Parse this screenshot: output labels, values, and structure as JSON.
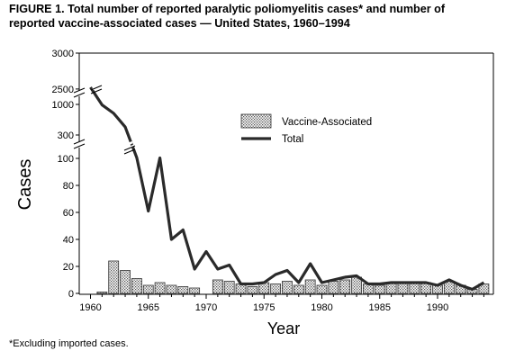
{
  "title_line1": "FIGURE 1. Total number of reported paralytic poliomyelitis cases* and number of",
  "title_line2": "reported vaccine-associated cases — United States, 1960–1994",
  "footnote": "*Excluding imported cases.",
  "chart_data": {
    "type": "bar+line",
    "xlabel": "Year",
    "ylabel": "Cases",
    "x_ticks": [
      "1960",
      "1965",
      "1970",
      "1975",
      "1980",
      "1985",
      "1990"
    ],
    "y_ticks_lower": [
      "0",
      "20",
      "40",
      "60",
      "80",
      "100"
    ],
    "y_ticks_upper": [
      "300",
      "1000",
      "2500",
      "3000"
    ],
    "axis_breaks": true,
    "legend_position": "center-right",
    "colors": {
      "bars": "#cfcfcf",
      "line": "#2a2a2a"
    },
    "years": [
      1960,
      1961,
      1962,
      1963,
      1964,
      1965,
      1966,
      1967,
      1968,
      1969,
      1970,
      1971,
      1972,
      1973,
      1974,
      1975,
      1976,
      1977,
      1978,
      1979,
      1980,
      1981,
      1982,
      1983,
      1984,
      1985,
      1986,
      1987,
      1988,
      1989,
      1990,
      1991,
      1992,
      1993,
      1994
    ],
    "series": [
      {
        "name": "Vaccine-Associated",
        "kind": "bar",
        "values": [
          0,
          1,
          24,
          17,
          11,
          6,
          8,
          6,
          5,
          4,
          0,
          10,
          9,
          7,
          5,
          8,
          7,
          9,
          6,
          10,
          6,
          9,
          10,
          12,
          7,
          6,
          8,
          8,
          8,
          8,
          6,
          9,
          6,
          3,
          7
        ]
      },
      {
        "name": "Total",
        "kind": "line",
        "values": [
          2525,
          988,
          762,
          396,
          106,
          61,
          104,
          40,
          47,
          18,
          31,
          18,
          21,
          7,
          7,
          8,
          14,
          17,
          8,
          22,
          8,
          10,
          12,
          13,
          7,
          7,
          8,
          8,
          8,
          8,
          6,
          10,
          6,
          3,
          8
        ]
      }
    ]
  }
}
